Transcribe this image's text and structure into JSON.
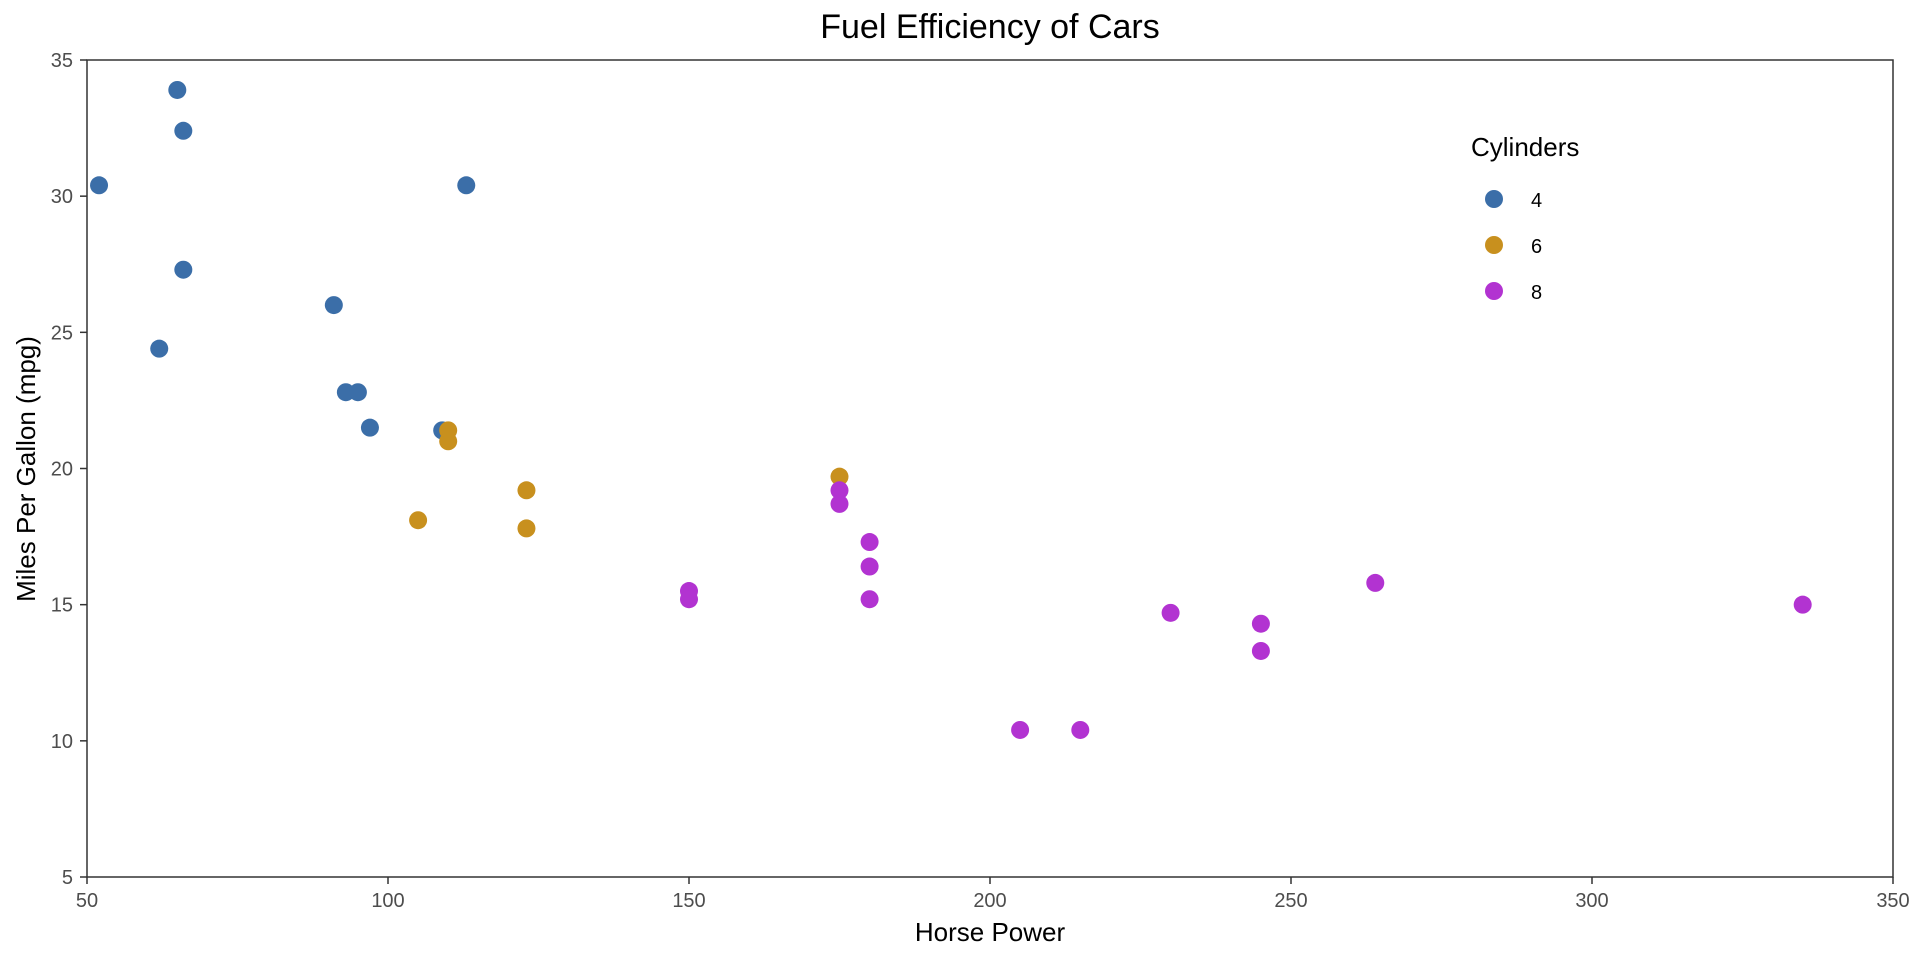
{
  "chart_data": {
    "type": "scatter",
    "title": "Fuel Efficiency of Cars",
    "xlabel": "Horse Power",
    "ylabel": "Miles Per Gallon (mpg)",
    "xlim": [
      50,
      350
    ],
    "ylim": [
      5,
      35
    ],
    "xticks": [
      50,
      100,
      150,
      200,
      250,
      300,
      350
    ],
    "yticks": [
      5,
      10,
      15,
      20,
      25,
      30,
      35
    ],
    "grid": false,
    "legend": {
      "title": "Cylinders",
      "position": "top-right"
    },
    "series": [
      {
        "name": "4",
        "color": "#3b6ea8",
        "points": [
          [
            52,
            30.4
          ],
          [
            62,
            24.4
          ],
          [
            65,
            33.9
          ],
          [
            66,
            32.4
          ],
          [
            66,
            27.3
          ],
          [
            91,
            26.0
          ],
          [
            93,
            22.8
          ],
          [
            95,
            22.8
          ],
          [
            97,
            21.5
          ],
          [
            109,
            21.4
          ],
          [
            113,
            30.4
          ]
        ]
      },
      {
        "name": "6",
        "color": "#c8901e",
        "points": [
          [
            105,
            18.1
          ],
          [
            110,
            21.0
          ],
          [
            110,
            21.4
          ],
          [
            123,
            19.2
          ],
          [
            123,
            17.8
          ],
          [
            175,
            19.7
          ]
        ]
      },
      {
        "name": "8",
        "color": "#b233d1",
        "points": [
          [
            150,
            15.5
          ],
          [
            150,
            15.2
          ],
          [
            175,
            19.2
          ],
          [
            175,
            18.7
          ],
          [
            180,
            17.3
          ],
          [
            180,
            16.4
          ],
          [
            180,
            15.2
          ],
          [
            205,
            10.4
          ],
          [
            215,
            10.4
          ],
          [
            230,
            14.7
          ],
          [
            245,
            14.3
          ],
          [
            245,
            13.3
          ],
          [
            264,
            15.8
          ],
          [
            335,
            15.0
          ]
        ]
      }
    ]
  }
}
